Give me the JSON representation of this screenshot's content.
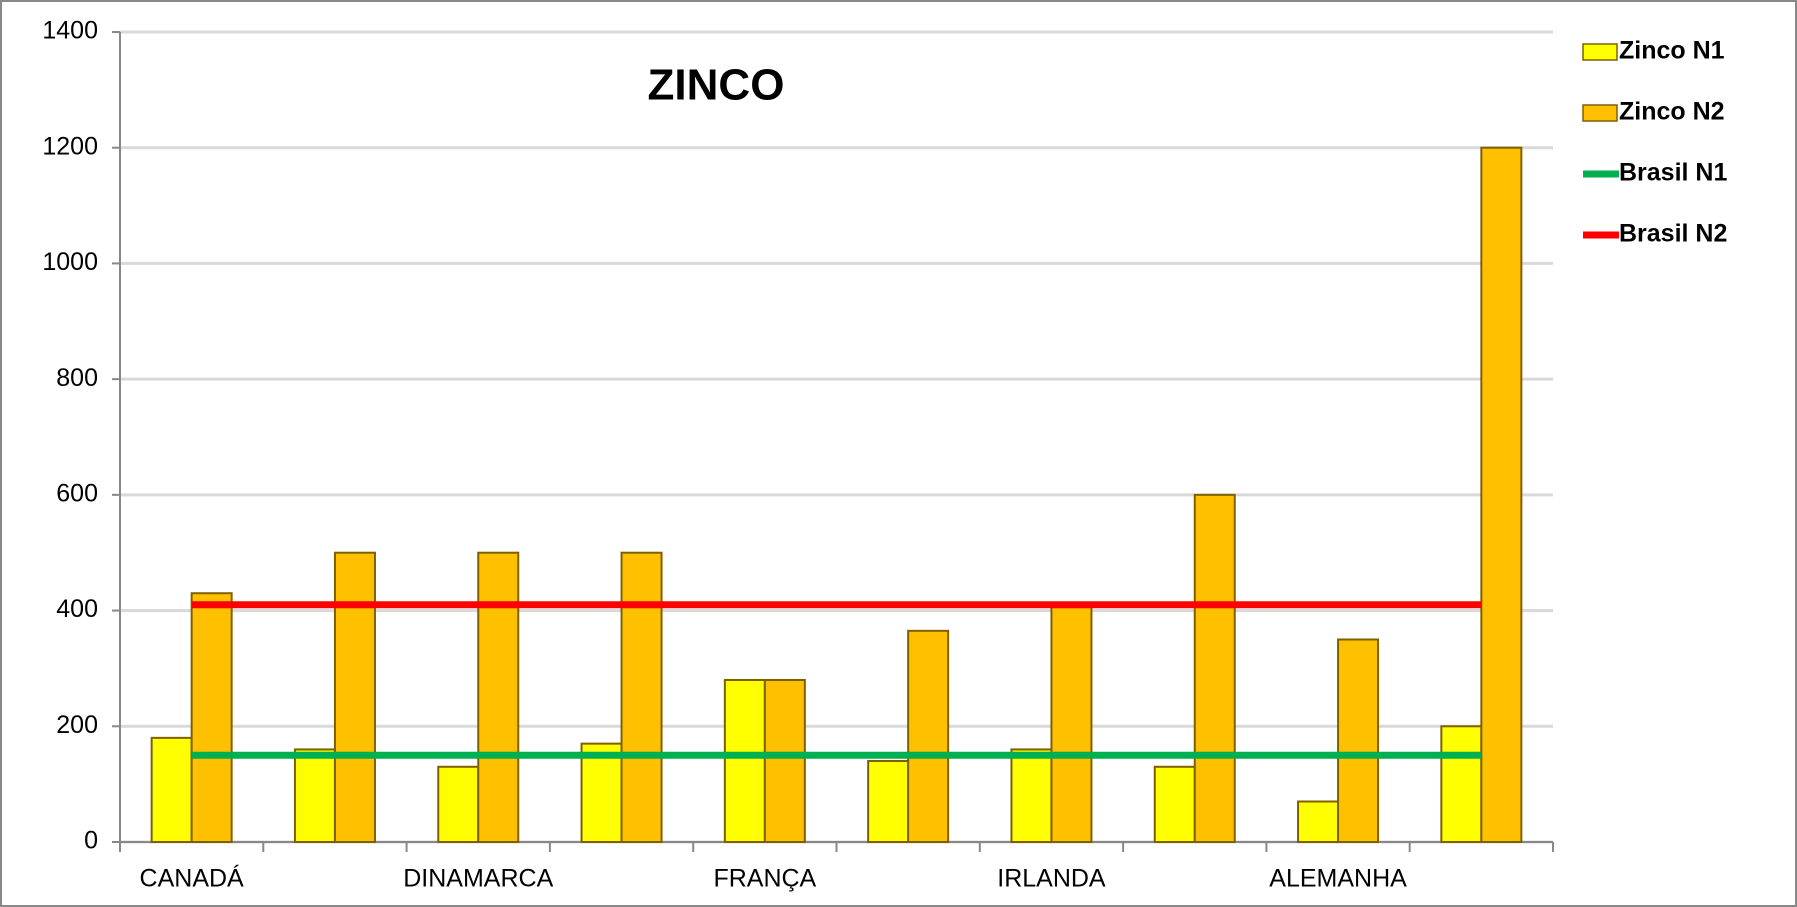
{
  "chart_data": {
    "type": "bar",
    "title": "ZINCO",
    "categories": [
      "CANADÁ",
      null,
      "DINAMARCA",
      null,
      "FRANÇA",
      null,
      "IRLANDA",
      null,
      "ALEMANHA",
      null
    ],
    "series": [
      {
        "name": "Zinco N1",
        "type": "bar",
        "color": "#ffff00",
        "values": [
          180,
          160,
          130,
          170,
          280,
          140,
          160,
          130,
          70,
          200
        ]
      },
      {
        "name": "Zinco N2",
        "type": "bar",
        "color": "#ffc000",
        "values": [
          430,
          500,
          500,
          500,
          280,
          365,
          410,
          600,
          350,
          1200
        ]
      },
      {
        "name": "Brasil N1",
        "type": "line",
        "color": "#00b050",
        "values": [
          150,
          150,
          150,
          150,
          150,
          150,
          150,
          150,
          150,
          150
        ]
      },
      {
        "name": "Brasil N2",
        "type": "line",
        "color": "#ff0000",
        "values": [
          410,
          410,
          410,
          410,
          410,
          410,
          410,
          410,
          410,
          410
        ]
      }
    ],
    "ylim": [
      0,
      1400
    ],
    "yticks": [
      0,
      200,
      400,
      600,
      800,
      1000,
      1200,
      1400
    ],
    "grid": true,
    "legend": "right"
  }
}
